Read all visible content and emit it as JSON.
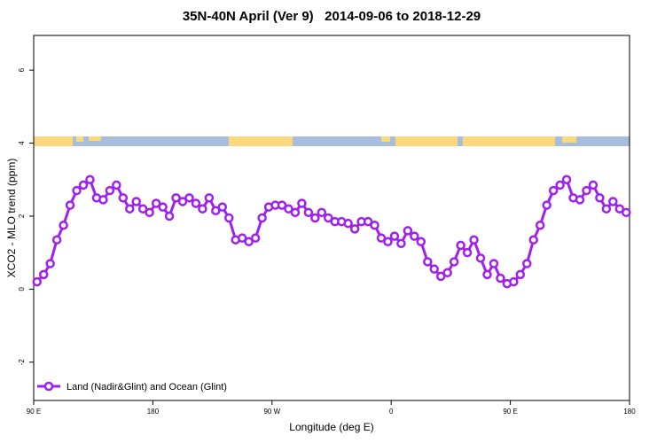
{
  "chart_data": {
    "type": "line",
    "title": "35N-40N April (Ver 9)   2014-09-06 to 2018-12-29",
    "xlabel": "Longitude (deg E)",
    "ylabel": "XCO2 - MLO trend (ppm)",
    "xlim": [
      90,
      540
    ],
    "xticks": [
      {
        "value": 90,
        "label": "90 E"
      },
      {
        "value": 180,
        "label": "180"
      },
      {
        "value": 270,
        "label": "90 W"
      },
      {
        "value": 360,
        "label": "0"
      },
      {
        "value": 450,
        "label": "90 E"
      },
      {
        "value": 540,
        "label": "180"
      }
    ],
    "ylim": [
      -3.05,
      6.95
    ],
    "yticks": [
      -2,
      0,
      2,
      4,
      6
    ],
    "legend": "bottom-left",
    "series": [
      {
        "name": "Land (Nadir&Glint) and Ocean (Glint)",
        "color": "#a020f0",
        "x": [
          92.5,
          97.5,
          102.5,
          107.5,
          112.5,
          117.5,
          122.5,
          127.5,
          132.5,
          137.5,
          142.5,
          147.5,
          152.5,
          157.5,
          162.5,
          167.5,
          172.5,
          177.5,
          182.5,
          187.5,
          192.5,
          197.5,
          202.5,
          207.5,
          212.5,
          217.5,
          222.5,
          227.5,
          232.5,
          237.5,
          242.5,
          247.5,
          252.5,
          257.5,
          262.5,
          267.5,
          272.5,
          277.5,
          282.5,
          287.5,
          292.5,
          297.5,
          302.5,
          307.5,
          312.5,
          317.5,
          322.5,
          327.5,
          332.5,
          337.5,
          342.5,
          347.5,
          352.5,
          357.5,
          362.5,
          367.5,
          372.5,
          377.5,
          382.5,
          387.5,
          392.5,
          397.5,
          402.5,
          407.5,
          412.5,
          417.5,
          422.5,
          427.5,
          432.5,
          437.5,
          442.5,
          447.5,
          452.5,
          457.5,
          462.5,
          467.5,
          472.5,
          477.5,
          482.5,
          487.5,
          492.5,
          497.5,
          502.5,
          507.5,
          512.5,
          517.5,
          522.5,
          527.5,
          532.5,
          537.5
        ],
        "values": [
          0.2,
          0.4,
          0.7,
          1.35,
          1.75,
          2.3,
          2.7,
          2.85,
          3.0,
          2.5,
          2.45,
          2.7,
          2.85,
          2.5,
          2.2,
          2.4,
          2.2,
          2.1,
          2.35,
          2.25,
          2.0,
          2.5,
          2.4,
          2.5,
          2.35,
          2.2,
          2.5,
          2.15,
          2.25,
          1.95,
          1.35,
          1.4,
          1.3,
          1.4,
          1.95,
          2.25,
          2.3,
          2.3,
          2.2,
          2.1,
          2.35,
          2.1,
          1.95,
          2.1,
          1.95,
          1.85,
          1.85,
          1.8,
          1.65,
          1.85,
          1.85,
          1.75,
          1.4,
          1.3,
          1.45,
          1.25,
          1.6,
          1.45,
          1.3,
          0.75,
          0.55,
          0.35,
          0.45,
          0.75,
          1.2,
          1.0,
          1.35,
          0.85,
          0.4,
          0.7,
          0.3,
          0.15,
          0.2,
          0.4,
          0.7,
          1.35,
          1.75,
          2.3,
          2.7,
          2.85,
          3.0,
          2.5,
          2.45,
          2.7,
          2.85,
          2.5,
          2.2,
          2.4,
          2.2,
          2.1
        ]
      }
    ]
  }
}
